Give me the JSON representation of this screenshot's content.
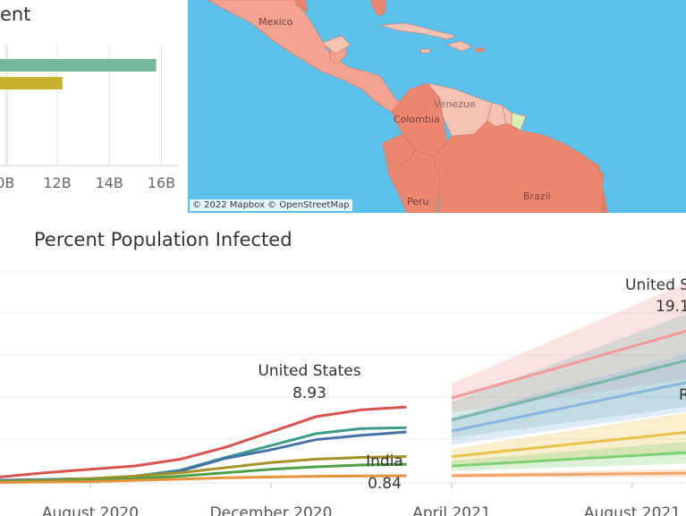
{
  "bar_panel": {
    "title_fragment": "ent",
    "colors": [
      "#74b99b",
      "#c9b12e"
    ],
    "chart_data": {
      "type": "bar",
      "orientation": "horizontal",
      "categories": [
        "",
        ""
      ],
      "values": [
        15.8,
        12.2
      ],
      "tick_labels": [
        "0B",
        "12B",
        "14B",
        "16B"
      ],
      "tick_values": [
        10,
        12,
        14,
        16
      ],
      "xlim": [
        9.8,
        16.5
      ]
    }
  },
  "map": {
    "attribution": "© 2022 Mapbox © OpenStreetMap",
    "labels": {
      "mexico": "Mexico",
      "venezuela": "Venezue",
      "colombia": "Colombia",
      "peru": "Peru",
      "brazil": "Brazil"
    },
    "colors": {
      "ocean": "#5cc2ec",
      "high": "#ec8770",
      "mid": "#f3a390",
      "low": "#f6c2b4",
      "pale": "#fbe0d6",
      "guiana": "#dceeb8"
    }
  },
  "line_panel": {
    "title": "Percent Population Infected",
    "x_ticks": [
      "August 2020",
      "December 2020",
      "April 2021",
      "August 2021"
    ],
    "annotations": {
      "us_name": "United States",
      "us_value": "8.93",
      "india_name": "India",
      "india_value": "0.84",
      "forecast_name": "United S",
      "forecast_value": "19.1",
      "edge_letter": "R"
    },
    "chart_data": {
      "type": "line",
      "x": [
        "2020-06",
        "2020-07",
        "2020-08",
        "2020-09",
        "2020-10",
        "2020-11",
        "2020-12",
        "2021-01",
        "2021-02",
        "2021-03"
      ],
      "series": [
        {
          "name": "United States",
          "color": "#d9534f",
          "values": [
            0.7,
            1.2,
            1.6,
            2.0,
            2.8,
            4.2,
            6.0,
            7.8,
            8.6,
            8.93
          ]
        },
        {
          "color": "#3f9c8c",
          "values": [
            0.3,
            0.4,
            0.5,
            0.8,
            1.5,
            3.0,
            4.4,
            5.8,
            6.4,
            6.5
          ]
        },
        {
          "color": "#4472a8",
          "values": [
            0.3,
            0.4,
            0.5,
            0.7,
            1.4,
            2.9,
            3.9,
            5.1,
            5.6,
            6.0
          ]
        },
        {
          "color": "#a89228",
          "values": [
            0.2,
            0.3,
            0.5,
            0.8,
            1.2,
            1.8,
            2.4,
            2.8,
            3.0,
            3.1
          ]
        },
        {
          "color": "#4ca048",
          "values": [
            0.1,
            0.2,
            0.3,
            0.5,
            0.8,
            1.2,
            1.6,
            1.9,
            2.1,
            2.2
          ]
        },
        {
          "name": "India",
          "color": "#e8923a",
          "values": [
            0.05,
            0.1,
            0.15,
            0.3,
            0.45,
            0.6,
            0.7,
            0.78,
            0.82,
            0.84
          ]
        }
      ],
      "forecast": {
        "x": [
          "2021-04",
          "2021-10"
        ],
        "series": [
          {
            "color": "#f29a9a",
            "values": [
              10.0,
              19.1
            ],
            "band_low": [
              8.3,
              12.8
            ],
            "band_high": [
              11.7,
              25.4
            ]
          },
          {
            "color": "#7ab5a8",
            "values": [
              7.4,
              15.5
            ],
            "band_low": [
              5.3,
              9.5
            ],
            "band_high": [
              9.5,
              21.5
            ]
          },
          {
            "color": "#89b6e0",
            "values": [
              6.1,
              12.7
            ],
            "band_low": [
              4.5,
              9.0
            ],
            "band_high": [
              7.7,
              16.4
            ]
          },
          {
            "color": "#e8c24a",
            "values": [
              3.1,
              6.4
            ],
            "band_low": [
              2.2,
              3.9
            ],
            "band_high": [
              4.0,
              8.9
            ]
          },
          {
            "color": "#7fcf73",
            "values": [
              2.0,
              3.8
            ],
            "band_low": [
              1.4,
              2.4
            ],
            "band_high": [
              2.6,
              5.2
            ]
          },
          {
            "color": "#f3a46a",
            "values": [
              0.85,
              1.2
            ],
            "band_low": [
              0.6,
              0.7
            ],
            "band_high": [
              1.1,
              1.7
            ]
          }
        ]
      },
      "ylim": [
        0,
        24
      ],
      "grid": true
    }
  }
}
